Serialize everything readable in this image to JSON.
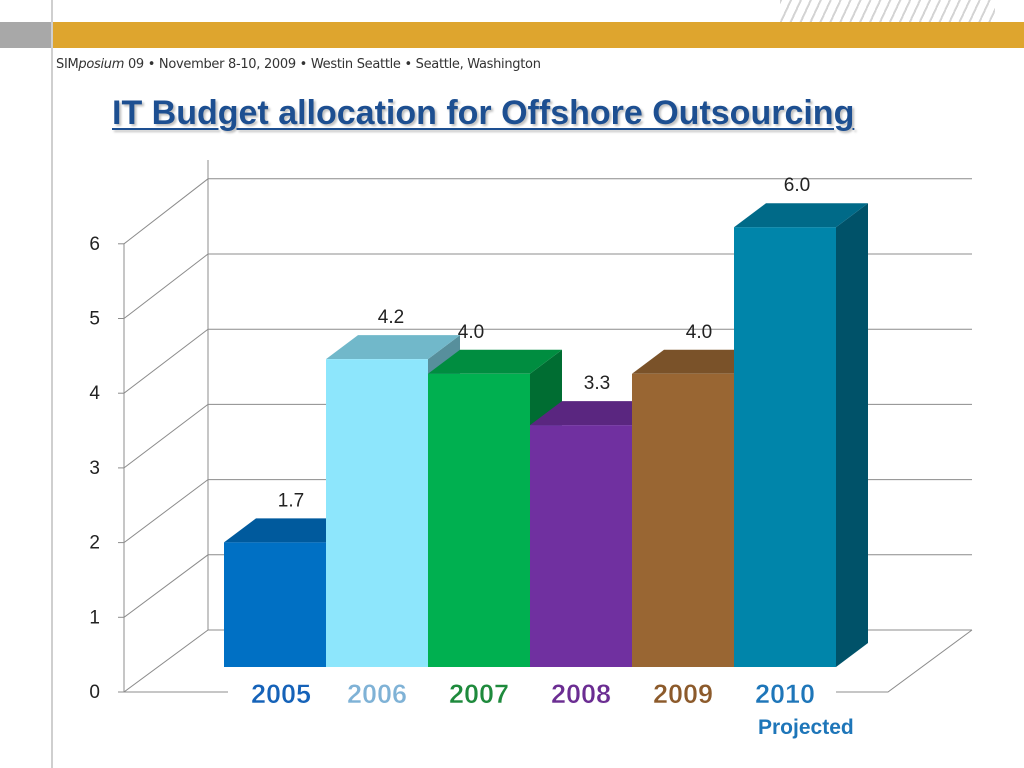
{
  "header": {
    "sim": "SIM",
    "posium": "posium",
    "details": " 09  •  November 8-10, 2009  •  Westin Seattle  •  Seattle, Washington"
  },
  "colors": {
    "title": "#1d4f91",
    "topbar": "#dea52e"
  },
  "chart_data": {
    "type": "bar",
    "title": "IT Budget allocation for Offshore Outsourcing",
    "xlabel": "",
    "ylabel": "",
    "ylim": [
      0,
      6
    ],
    "yticks": [
      0,
      1,
      2,
      3,
      4,
      5,
      6
    ],
    "grid": true,
    "categories": [
      "2005",
      "2006",
      "2007",
      "2008",
      "2009",
      "2010"
    ],
    "values": [
      1.7,
      4.2,
      4.0,
      3.3,
      4.0,
      6.0
    ],
    "data_labels": [
      "1.7",
      "4.2",
      "4.0",
      "3.3",
      "4.0",
      "6.0"
    ],
    "bar_colors": [
      "#0070c4",
      "#8de6fc",
      "#00b050",
      "#7030a0",
      "#996633",
      "#0085aa"
    ],
    "category_label_colors": [
      "#1562b8",
      "#7fb2d6",
      "#1e8a3c",
      "#6b2d92",
      "#8c5a2b",
      "#1e76b9"
    ],
    "annotation": "Projected"
  }
}
